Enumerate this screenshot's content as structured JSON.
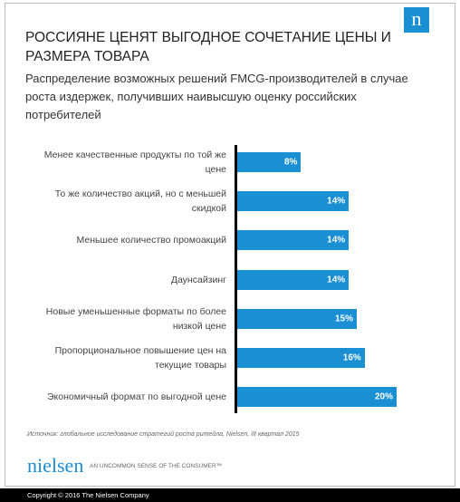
{
  "logo": "n",
  "chart_data": {
    "type": "bar",
    "orientation": "horizontal",
    "title": "РОССИЯНЕ ЦЕНЯТ ВЫГОДНОЕ СОЧЕТАНИЕ ЦЕНЫ И РАЗМЕРА ТОВАРА",
    "subtitle": "Распределение возможных решений FMCG-производителей в случае роста издержек, получивших наивысшую оценку российских потребителей",
    "categories": [
      "Менее качественные продукты по той же цене",
      "То же количество акций, но с меньшей скидкой",
      "Меньшее количество промоакций",
      "Даунсайзинг",
      "Новые уменьшенные форматы по более низкой цене",
      "Пропорциональное повышение цен на текущие товары",
      "Экономичный формат по выгодной цене"
    ],
    "values": [
      8,
      14,
      14,
      14,
      15,
      16,
      20
    ],
    "value_labels": [
      "8%",
      "14%",
      "14%",
      "14%",
      "15%",
      "16%",
      "20%"
    ],
    "color": "#1a8fd3",
    "source": "Источник: глобальное исследование стратегий роста ритейла, Nielsen, III квартал 2015"
  },
  "brand": "nielsen",
  "tagline": "AN UNCOMMON SENSE OF THE CONSUMER™",
  "copyright": "Copyright © 2016 The Nielsen Company"
}
